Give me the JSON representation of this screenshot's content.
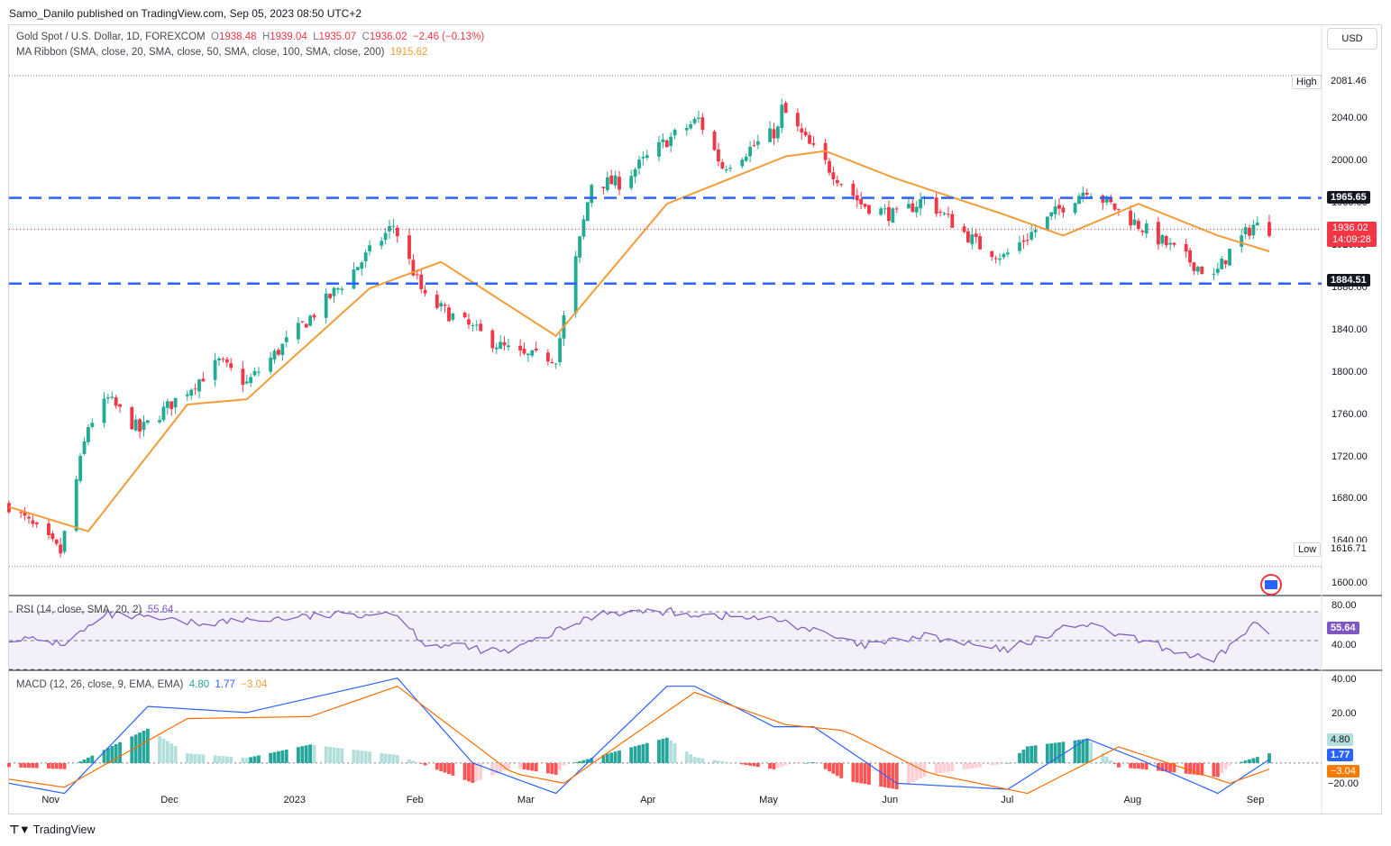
{
  "header": {
    "publisher": "Samo_Danilo published on TradingView.com, Sep 05, 2023 08:50 UTC+2",
    "symbol": "Gold Spot / U.S. Dollar, 1D, FOREXCOM",
    "o_label": "O",
    "o_value": "1938.48",
    "h_label": "H",
    "h_value": "1939.04",
    "l_label": "L",
    "l_value": "1935.07",
    "c_label": "C",
    "c_value": "1936.02",
    "change": "−2.46 (−0.13%)",
    "ma_label": "MA Ribbon (SMA, close, 20, SMA, close, 50, SMA, close, 100, SMA, close, 200)",
    "ma_value": "1915.62",
    "currency_button": "USD"
  },
  "price_axis": {
    "ticks": [
      "2040.00",
      "2000.00",
      "1960.00",
      "1920.00",
      "1880.00",
      "1840.00",
      "1800.00",
      "1760.00",
      "1720.00",
      "1680.00",
      "1640.00",
      "1600.00"
    ],
    "high_label": "High",
    "high_value": "2081.46",
    "low_label": "Low",
    "low_value": "1616.71",
    "resistance": "1965.65",
    "support": "1884.51",
    "last_price": "1936.02",
    "countdown": "14:09:28"
  },
  "rsi": {
    "label": "RSI (14, close, SMA, 20, 2)",
    "value": "55.64",
    "ticks": [
      "80.00",
      "40.00"
    ]
  },
  "macd": {
    "label": "MACD (12, 26, close, 9, EMA, EMA)",
    "hist": "4.80",
    "macd": "1.77",
    "signal": "−3.04",
    "ticks": [
      "40.00",
      "20.00",
      "−20.00"
    ]
  },
  "time_axis": [
    "Nov",
    "Dec",
    "2023",
    "Feb",
    "Mar",
    "Apr",
    "May",
    "Jun",
    "Jul",
    "Aug",
    "Sep"
  ],
  "footer": {
    "brand": "TradingView"
  },
  "colors": {
    "up": "#22ab94",
    "down": "#f23645",
    "ma": "#f29d38",
    "level": "#2962ff",
    "rsi": "#7e57c2"
  },
  "chart_data": {
    "type": "candlestick",
    "anchors": [
      [
        "2022-10-21",
        1675
      ],
      [
        "2022-11-03",
        1630
      ],
      [
        "2022-11-10",
        1750
      ],
      [
        "2022-11-15",
        1775
      ],
      [
        "2022-11-23",
        1745
      ],
      [
        "2022-12-13",
        1810
      ],
      [
        "2022-12-20",
        1790
      ],
      [
        "2023-01-12",
        1880
      ],
      [
        "2023-01-26",
        1940
      ],
      [
        "2023-02-03",
        1870
      ],
      [
        "2023-02-22",
        1825
      ],
      [
        "2023-02-28",
        1815
      ],
      [
        "2023-03-08",
        1815
      ],
      [
        "2023-03-17",
        1980
      ],
      [
        "2023-03-24",
        1980
      ],
      [
        "2023-04-05",
        2020
      ],
      [
        "2023-04-13",
        2040
      ],
      [
        "2023-04-19",
        1995
      ],
      [
        "2023-05-03",
        2030
      ],
      [
        "2023-05-04",
        2050
      ],
      [
        "2023-05-11",
        2015
      ],
      [
        "2023-05-24",
        1960
      ],
      [
        "2023-06-02",
        1948
      ],
      [
        "2023-06-09",
        1965
      ],
      [
        "2023-06-23",
        1920
      ],
      [
        "2023-06-29",
        1910
      ],
      [
        "2023-07-14",
        1958
      ],
      [
        "2023-07-20",
        1975
      ],
      [
        "2023-08-02",
        1940
      ],
      [
        "2023-08-21",
        1890
      ],
      [
        "2023-08-25",
        1915
      ],
      [
        "2023-08-31",
        1940
      ],
      [
        "2023-09-04",
        1936
      ]
    ],
    "ma20_anchors": [
      [
        "2022-10-21",
        1673
      ],
      [
        "2022-11-10",
        1650
      ],
      [
        "2022-12-05",
        1770
      ],
      [
        "2022-12-20",
        1775
      ],
      [
        "2023-01-20",
        1880
      ],
      [
        "2023-02-07",
        1905
      ],
      [
        "2023-03-08",
        1835
      ],
      [
        "2023-04-05",
        1960
      ],
      [
        "2023-05-05",
        2005
      ],
      [
        "2023-05-15",
        2010
      ],
      [
        "2023-06-01",
        1985
      ],
      [
        "2023-06-29",
        1950
      ],
      [
        "2023-07-14",
        1930
      ],
      [
        "2023-08-02",
        1960
      ],
      [
        "2023-08-22",
        1930
      ],
      [
        "2023-09-04",
        1915
      ]
    ],
    "rsi_anchors": [
      [
        "2022-10-21",
        52
      ],
      [
        "2022-11-04",
        48
      ],
      [
        "2022-11-15",
        68
      ],
      [
        "2022-12-07",
        62
      ],
      [
        "2023-01-26",
        70
      ],
      [
        "2023-02-03",
        48
      ],
      [
        "2023-02-24",
        42
      ],
      [
        "2023-03-20",
        70
      ],
      [
        "2023-04-05",
        70
      ],
      [
        "2023-05-04",
        64
      ],
      [
        "2023-05-24",
        46
      ],
      [
        "2023-06-09",
        53
      ],
      [
        "2023-06-29",
        43
      ],
      [
        "2023-07-18",
        62
      ],
      [
        "2023-08-02",
        50
      ],
      [
        "2023-08-21",
        35
      ],
      [
        "2023-08-31",
        62
      ],
      [
        "2023-09-04",
        55.64
      ]
    ],
    "macd_anchors": [
      [
        "2022-10-21",
        -10
      ],
      [
        "2022-11-04",
        -15
      ],
      [
        "2022-11-25",
        28
      ],
      [
        "2022-12-20",
        25
      ],
      [
        "2023-01-27",
        42
      ],
      [
        "2023-02-15",
        0
      ],
      [
        "2023-03-08",
        -15
      ],
      [
        "2023-04-05",
        38
      ],
      [
        "2023-04-12",
        38
      ],
      [
        "2023-05-02",
        18
      ],
      [
        "2023-05-12",
        18
      ],
      [
        "2023-06-02",
        -10
      ],
      [
        "2023-06-30",
        -13
      ],
      [
        "2023-07-20",
        12
      ],
      [
        "2023-08-02",
        2
      ],
      [
        "2023-08-22",
        -15
      ],
      [
        "2023-09-04",
        1.77
      ]
    ],
    "signal_anchors": [
      [
        "2022-10-21",
        -8
      ],
      [
        "2022-11-04",
        -12
      ],
      [
        "2022-12-05",
        22
      ],
      [
        "2023-01-05",
        23
      ],
      [
        "2023-01-27",
        38
      ],
      [
        "2023-02-25",
        -5
      ],
      [
        "2023-03-10",
        -10
      ],
      [
        "2023-04-12",
        35
      ],
      [
        "2023-05-05",
        19
      ],
      [
        "2023-05-20",
        16
      ],
      [
        "2023-06-10",
        -5
      ],
      [
        "2023-07-05",
        -15
      ],
      [
        "2023-07-28",
        8
      ],
      [
        "2023-08-25",
        -10
      ],
      [
        "2023-09-04",
        -3.04
      ]
    ],
    "levels": {
      "high": 2081.46,
      "low": 1616.71,
      "resistance": 1965.65,
      "support": 1884.51
    },
    "price_range": [
      1590,
      2095
    ],
    "rsi_range": [
      30,
      80
    ],
    "macd_range": [
      -25,
      45
    ]
  }
}
